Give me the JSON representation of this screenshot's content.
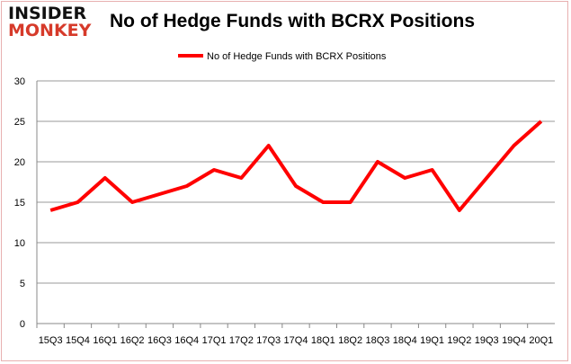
{
  "logo": {
    "line1": "INSIDER",
    "line2": "MONKEY"
  },
  "chart_data": {
    "type": "line",
    "title": "No of Hedge Funds with BCRX Positions",
    "categories": [
      "15Q3",
      "15Q4",
      "16Q1",
      "16Q2",
      "16Q3",
      "16Q4",
      "17Q1",
      "17Q2",
      "17Q3",
      "17Q4",
      "18Q1",
      "18Q2",
      "18Q3",
      "18Q4",
      "19Q1",
      "19Q2",
      "19Q3",
      "19Q4",
      "20Q1"
    ],
    "series": [
      {
        "name": "No of Hedge Funds with BCRX Positions",
        "color": "#ff0000",
        "values": [
          14,
          15,
          18,
          15,
          16,
          17,
          19,
          18,
          22,
          17,
          15,
          15,
          20,
          18,
          19,
          14,
          18,
          22,
          25
        ]
      }
    ],
    "ylim": [
      0,
      30
    ],
    "yticks": [
      0,
      5,
      10,
      15,
      20,
      25,
      30
    ],
    "grid": true,
    "legend": "top-center"
  }
}
